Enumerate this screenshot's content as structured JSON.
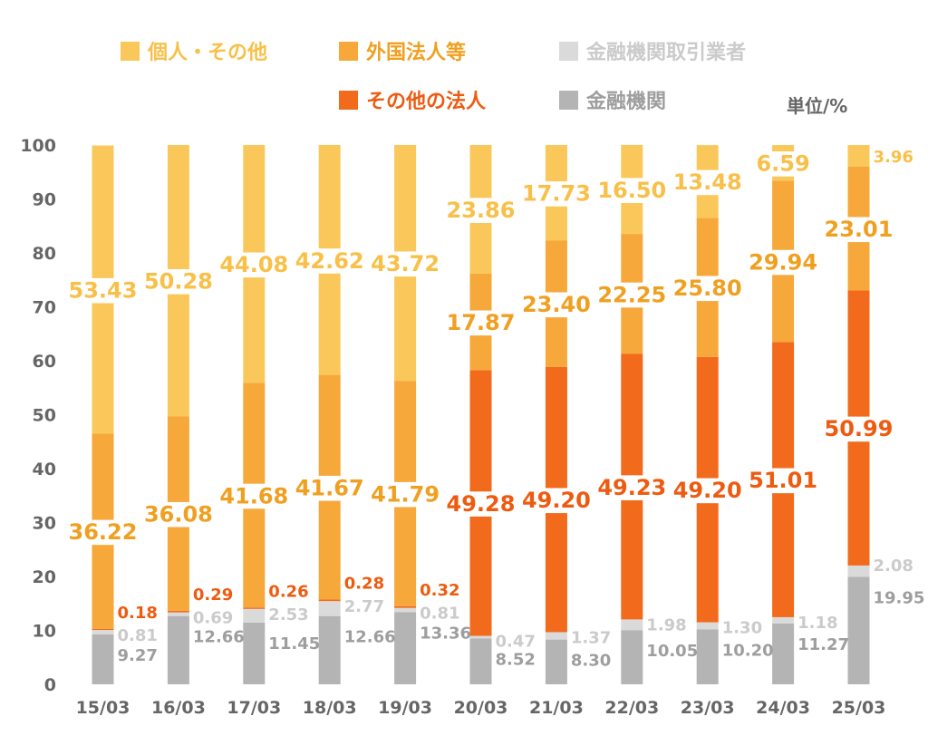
{
  "chart_data": {
    "type": "bar",
    "stacked": true,
    "unit_label": "単位/%",
    "categories": [
      "15/03",
      "16/03",
      "17/03",
      "18/03",
      "19/03",
      "20/03",
      "21/03",
      "22/03",
      "23/03",
      "24/03",
      "25/03"
    ],
    "ylim": [
      0,
      100
    ],
    "y_ticks": [
      "0",
      "10",
      "20",
      "30",
      "40",
      "50",
      "60",
      "70",
      "80",
      "90",
      "100"
    ],
    "grid": false,
    "legend_position": "top",
    "series": [
      {
        "name": "金融機関",
        "color": "#b4b4b4",
        "text_color": "#9e9e9e",
        "values": [
          9.27,
          12.66,
          11.45,
          12.66,
          13.36,
          8.52,
          8.3,
          10.05,
          10.2,
          11.27,
          19.95
        ],
        "labels": [
          "9.27",
          "12.66",
          "11.45",
          "12.66",
          "13.36",
          "8.52",
          "8.30",
          "10.05",
          "10.20",
          "11.27",
          "19.95"
        ]
      },
      {
        "name": "金融機関取引業者",
        "color": "#dadada",
        "text_color": "#cbcbcb",
        "values": [
          0.81,
          0.69,
          2.53,
          2.77,
          0.81,
          0.47,
          1.37,
          1.98,
          1.3,
          1.18,
          2.08
        ],
        "labels": [
          "0.81",
          "0.69",
          "2.53",
          "2.77",
          "0.81",
          "0.47",
          "1.37",
          "1.98",
          "1.30",
          "1.18",
          "2.08"
        ]
      },
      {
        "name": "その他の法人",
        "color": "#f26a1b",
        "text_color": "#ee5b10",
        "values": [
          0.18,
          0.29,
          0.26,
          0.28,
          0.32,
          49.28,
          49.2,
          49.23,
          49.2,
          51.01,
          50.99
        ],
        "labels": [
          "0.18",
          "0.29",
          "0.26",
          "0.28",
          "0.32",
          "49.28",
          "49.20",
          "49.23",
          "49.20",
          "51.01",
          "50.99"
        ]
      },
      {
        "name": "外国法人等",
        "color": "#f6a83a",
        "text_color": "#f0a020",
        "values": [
          36.22,
          36.08,
          41.68,
          41.67,
          41.79,
          17.87,
          23.4,
          22.25,
          25.8,
          29.94,
          23.01
        ],
        "labels": [
          "36.22",
          "36.08",
          "41.68",
          "41.67",
          "41.79",
          "17.87",
          "23.40",
          "22.25",
          "25.80",
          "29.94",
          "23.01"
        ]
      },
      {
        "name": "個人・その他",
        "color": "#fac85a",
        "text_color": "#f8c048",
        "values": [
          53.43,
          50.28,
          44.08,
          42.62,
          43.72,
          23.86,
          17.73,
          16.5,
          13.48,
          6.59,
          3.96
        ],
        "labels": [
          "53.43",
          "50.28",
          "44.08",
          "42.62",
          "43.72",
          "23.86",
          "17.73",
          "16.50",
          "13.48",
          "6.59",
          "3.96"
        ]
      }
    ]
  },
  "legend": {
    "row1": [
      {
        "label": "個人・その他",
        "color": "#fac85a"
      },
      {
        "label": "外国法人等",
        "color": "#f6a83a"
      },
      {
        "label": "金融機関取引業者",
        "color": "#dadada"
      }
    ],
    "row2": [
      {
        "label": "その他の法人",
        "color": "#f26a1b"
      },
      {
        "label": "金融機関",
        "color": "#b4b4b4"
      }
    ]
  }
}
